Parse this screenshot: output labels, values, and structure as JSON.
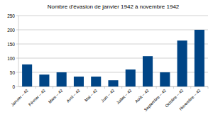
{
  "chart_data": {
    "type": "bar",
    "title": "Nombre d'évasion de janvier 1942 à novembre 1942",
    "categories": [
      "Janvier – 42",
      "Février – 42",
      "Mars – 42",
      "Avril – 42",
      "Mai – 42",
      "Juin – 42",
      "Juillet – 42",
      "Août – 42",
      "Septembre – 42",
      "Octobre – 42",
      "Novembre – 42"
    ],
    "values": [
      78,
      42,
      50,
      35,
      35,
      22,
      60,
      107,
      50,
      162,
      200
    ],
    "color": "#004586",
    "ylim": [
      0,
      250
    ],
    "yticks": [
      0,
      50,
      100,
      150,
      200,
      250
    ],
    "grid": true
  }
}
